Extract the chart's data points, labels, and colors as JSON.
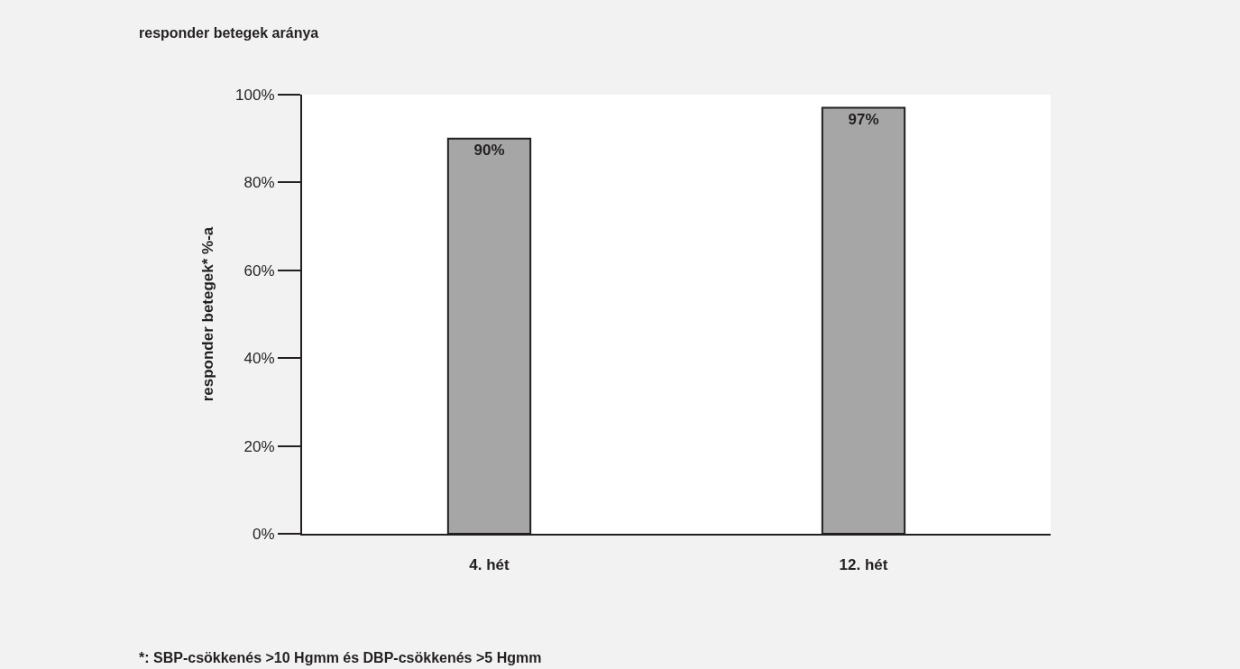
{
  "chart_data": {
    "type": "bar",
    "title": "responder betegek aránya",
    "ylabel": "responder betegek* %-a",
    "categories": [
      "4. hét",
      "12. hét"
    ],
    "values": [
      90,
      97
    ],
    "value_labels": [
      "90%",
      "97%"
    ],
    "color": "#a6a6a6",
    "ylim": [
      0,
      100
    ],
    "yticks": [
      {
        "value": 0,
        "label": "0%"
      },
      {
        "value": 20,
        "label": "20%"
      },
      {
        "value": 40,
        "label": "40%"
      },
      {
        "value": 60,
        "label": "60%"
      },
      {
        "value": 80,
        "label": "80%"
      },
      {
        "value": 100,
        "label": "100%"
      }
    ],
    "grid": false,
    "legend": false,
    "annotations": [
      "*: SBP-csökkenés >10 Hgmm és DBP-csökkenés >5 Hgmm"
    ]
  }
}
